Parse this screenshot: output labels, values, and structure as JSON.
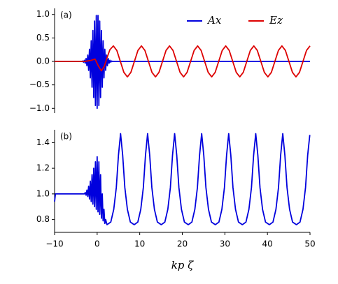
{
  "chart_data": [
    {
      "type": "line",
      "label": "(a)",
      "legend": "upper right",
      "xlim": [
        -10,
        50
      ],
      "ylim": [
        -1.1,
        1.13
      ],
      "yticks": [
        {
          "value": -1.0,
          "label": "−1.0"
        },
        {
          "value": -0.5,
          "label": "−0.5"
        },
        {
          "value": 0.0,
          "label": "0.0"
        },
        {
          "value": 0.5,
          "label": "0.5"
        },
        {
          "value": 1.0,
          "label": "1.0"
        }
      ],
      "series": [
        {
          "name": "Ax",
          "color": "#0000dd",
          "x": [
            -10,
            -3.6,
            -3.4,
            -3.2,
            -3.0,
            -2.8,
            -2.6,
            -2.4,
            -2.2,
            -2.0,
            -1.8,
            -1.6,
            -1.4,
            -1.2,
            -1.0,
            -0.8,
            -0.6,
            -0.4,
            -0.2,
            0,
            0.2,
            0.4,
            0.6,
            0.8,
            1.0,
            1.2,
            1.4,
            1.6,
            1.8,
            2.0,
            2.2,
            2.4,
            2.6,
            2.8,
            3.0,
            3.2,
            3.4,
            3.6,
            50
          ],
          "values": [
            0,
            0,
            0.008,
            -0.015,
            0.024,
            -0.039,
            0.061,
            -0.093,
            0.135,
            -0.19,
            0.26,
            -0.35,
            0.44,
            -0.55,
            0.66,
            -0.77,
            0.86,
            -0.94,
            0.98,
            -1.0,
            0.98,
            -0.94,
            0.86,
            -0.77,
            0.66,
            -0.55,
            0.44,
            -0.35,
            0.26,
            -0.19,
            0.135,
            -0.093,
            0.061,
            -0.039,
            0.024,
            -0.015,
            0.008,
            0,
            0
          ]
        },
        {
          "name": "Ez",
          "color": "#dd0000",
          "x": [
            -10,
            -3,
            -1.5,
            -0.5,
            0.3,
            1.0,
            1.7,
            2.4,
            3.0,
            3.8,
            4.625,
            5.45,
            6.275,
            7.1,
            7.925,
            8.75,
            9.575,
            10.4,
            11.225,
            12.05,
            12.875,
            13.7,
            14.525,
            15.35,
            16.175,
            17,
            17.825,
            18.65,
            19.475,
            20.3,
            21.125,
            21.95,
            22.775,
            23.6,
            24.425,
            25.25,
            26.075,
            26.9,
            27.725,
            28.55,
            29.375,
            30.2,
            31.025,
            31.85,
            32.675,
            33.5,
            34.325,
            35.15,
            35.975,
            36.8,
            37.625,
            38.45,
            39.275,
            40.1,
            40.925,
            41.75,
            42.575,
            43.4,
            44.225,
            45.05,
            45.875,
            46.7,
            47.525,
            48.35,
            49.175,
            50
          ],
          "values": [
            0,
            0,
            0.02,
            0.05,
            -0.1,
            -0.2,
            -0.1,
            0.1,
            0.25,
            0.33,
            0.233,
            0,
            -0.233,
            -0.33,
            -0.233,
            0,
            0.233,
            0.33,
            0.233,
            0,
            -0.233,
            -0.33,
            -0.233,
            0,
            0.233,
            0.33,
            0.233,
            0,
            -0.233,
            -0.33,
            -0.233,
            0,
            0.233,
            0.33,
            0.233,
            0,
            -0.233,
            -0.33,
            -0.233,
            0,
            0.233,
            0.33,
            0.233,
            0,
            -0.233,
            -0.33,
            -0.233,
            0,
            0.233,
            0.33,
            0.233,
            0,
            -0.233,
            -0.33,
            -0.233,
            0,
            0.233,
            0.33,
            0.233,
            0,
            -0.233,
            -0.33,
            -0.233,
            0,
            0.233,
            0.33
          ]
        }
      ]
    },
    {
      "type": "line",
      "label": "(b)",
      "xlabel": "kp ζ",
      "xlim": [
        -10,
        50
      ],
      "xticks": [
        {
          "value": -10,
          "label": "−10"
        },
        0,
        10,
        20,
        30,
        40,
        50
      ],
      "ylim": [
        0.7,
        1.5
      ],
      "yticks": [
        {
          "value": 0.8,
          "label": "0.8"
        },
        {
          "value": 1.0,
          "label": "1.0"
        },
        {
          "value": 1.2,
          "label": "1.2"
        },
        {
          "value": 1.4,
          "label": "1.4"
        }
      ],
      "series": [
        {
          "color": "#0000dd",
          "x": [
            -10,
            -9.8,
            -3,
            -2.8,
            -2.6,
            -2.4,
            -2.2,
            -2.0,
            -1.8,
            -1.6,
            -1.4,
            -1.2,
            -1.0,
            -0.8,
            -0.6,
            -0.4,
            -0.2,
            0,
            0.2,
            0.4,
            0.6,
            0.8,
            1.0,
            1.2,
            1.4,
            1.6,
            1.8,
            2.0,
            2.3,
            3.2,
            3.9,
            4.5,
            5.0,
            5.5,
            6.0,
            6.5,
            7.1,
            7.8,
            8.7,
            9.55,
            10.25,
            10.85,
            11.35,
            11.85,
            12.35,
            12.85,
            13.45,
            14.15,
            15.05,
            15.9,
            16.6,
            17.2,
            17.7,
            18.2,
            18.7,
            19.2,
            19.8,
            20.5,
            21.4,
            22.25,
            22.95,
            23.55,
            24.05,
            24.55,
            25.05,
            25.55,
            26.15,
            26.85,
            27.75,
            28.6,
            29.3,
            29.9,
            30.4,
            30.9,
            31.4,
            31.9,
            32.5,
            33.2,
            34.1,
            34.95,
            35.65,
            36.25,
            36.75,
            37.25,
            37.75,
            38.25,
            38.85,
            39.55,
            40.45,
            41.3,
            42.0,
            42.6,
            43.1,
            43.6,
            44.1,
            44.6,
            45.2,
            45.9,
            46.8,
            47.65,
            48.35,
            48.95,
            49.45,
            49.95
          ],
          "values": [
            0.94,
            1.0,
            1.0,
            1.01,
            0.99,
            1.03,
            0.98,
            1.06,
            0.96,
            1.1,
            0.94,
            1.15,
            0.92,
            1.2,
            0.9,
            1.25,
            0.88,
            1.29,
            0.86,
            1.25,
            0.84,
            1.15,
            0.81,
            1.0,
            0.79,
            0.88,
            0.77,
            0.8,
            0.76,
            0.78,
            0.88,
            1.05,
            1.3,
            1.47,
            1.3,
            1.05,
            0.88,
            0.78,
            0.76,
            0.78,
            0.88,
            1.05,
            1.3,
            1.47,
            1.3,
            1.05,
            0.88,
            0.78,
            0.76,
            0.78,
            0.88,
            1.05,
            1.3,
            1.47,
            1.3,
            1.05,
            0.88,
            0.78,
            0.76,
            0.78,
            0.88,
            1.05,
            1.3,
            1.47,
            1.3,
            1.05,
            0.88,
            0.78,
            0.76,
            0.78,
            0.88,
            1.05,
            1.3,
            1.47,
            1.3,
            1.05,
            0.88,
            0.78,
            0.76,
            0.78,
            0.88,
            1.05,
            1.3,
            1.47,
            1.3,
            1.05,
            0.88,
            0.78,
            0.76,
            0.78,
            0.88,
            1.05,
            1.3,
            1.47,
            1.3,
            1.05,
            0.88,
            0.78,
            0.76,
            0.78,
            0.88,
            1.05,
            1.3,
            1.46
          ]
        }
      ]
    }
  ]
}
